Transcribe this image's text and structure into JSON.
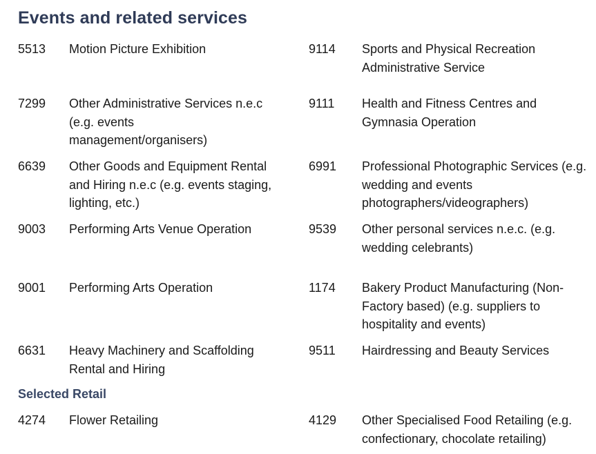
{
  "section_title": "Events and related services",
  "events_rows": [
    {
      "left": {
        "code": "5513",
        "desc": "Motion Picture Exhibition"
      },
      "right": {
        "code": "9114",
        "desc": "Sports and Physical Recreation\nAdministrative Service"
      }
    },
    {
      "left": {
        "code": "7299",
        "desc": "Other Administrative Services n.e.c\n(e.g. events\nmanagement/organisers)"
      },
      "right": {
        "code": "9111",
        "desc": "Health and Fitness Centres and\nGymnasia Operation"
      }
    },
    {
      "left": {
        "code": "6639",
        "desc": "Other Goods and Equipment Rental\nand Hiring n.e.c (e.g. events staging,\nlighting, etc.)"
      },
      "right": {
        "code": "6991",
        "desc": "Professional Photographic Services (e.g.\nwedding and events\nphotographers/videographers)"
      }
    },
    {
      "left": {
        "code": "9003",
        "desc": "Performing Arts Venue Operation"
      },
      "right": {
        "code": "9539",
        "desc": "Other personal services n.e.c. (e.g.\nwedding celebrants)"
      }
    },
    {
      "left": {
        "code": "9001",
        "desc": "Performing Arts Operation"
      },
      "right": {
        "code": "1174",
        "desc": "Bakery Product Manufacturing (Non-\nFactory based) (e.g. suppliers to\nhospitality and events)"
      }
    },
    {
      "left": {
        "code": "6631",
        "desc": "Heavy Machinery and Scaffolding\nRental and Hiring"
      },
      "right": {
        "code": "9511",
        "desc": "Hairdressing and Beauty Services"
      }
    }
  ],
  "retail_title": "Selected Retail",
  "retail_rows": [
    {
      "left": {
        "code": "4274",
        "desc": "Flower Retailing"
      },
      "right": {
        "code": "4129",
        "desc": "Other Specialised Food Retailing (e.g.\nconfectionary, chocolate retailing)"
      }
    }
  ],
  "colors": {
    "heading": "#2f3b57",
    "subheading": "#3a4866",
    "text": "#1a1a1a"
  }
}
